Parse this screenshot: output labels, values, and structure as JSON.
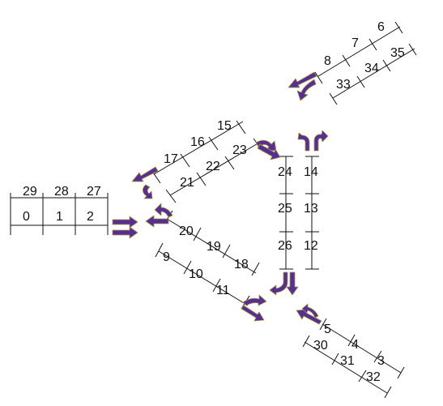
{
  "colors": {
    "arrow_fill": "#5a2d91",
    "arrow_outline": "#9a9a4a",
    "line": "#111111",
    "background": "#ffffff"
  },
  "segments": {
    "s0": "0",
    "s1": "1",
    "s2": "2",
    "s3": "3",
    "s4": "4",
    "s5": "5",
    "s6": "6",
    "s7": "7",
    "s8": "8",
    "s9": "9",
    "s10": "10",
    "s11": "11",
    "s12": "12",
    "s13": "13",
    "s14": "14",
    "s15": "15",
    "s16": "16",
    "s17": "17",
    "s18": "18",
    "s19": "19",
    "s20": "20",
    "s21": "21",
    "s22": "22",
    "s23": "23",
    "s24": "24",
    "s25": "25",
    "s26": "26",
    "s27": "27",
    "s28": "28",
    "s29": "29",
    "s30": "30",
    "s31": "31",
    "s32": "32",
    "s33": "33",
    "s34": "34",
    "s35": "35"
  },
  "arrow_icons": [
    "west-entry-arrow-icon",
    "west-junction-arrow-icon",
    "left-leg-top-arrow-icon",
    "left-diagonal-arrow-icon",
    "top-entry-arrow-icon",
    "right-vertical-top-arrow-icon",
    "northeast-arrow-icon",
    "bottom-junction-arrow-icon",
    "southeast-arrow-icon",
    "lower-diagonal-arrow-icon"
  ]
}
